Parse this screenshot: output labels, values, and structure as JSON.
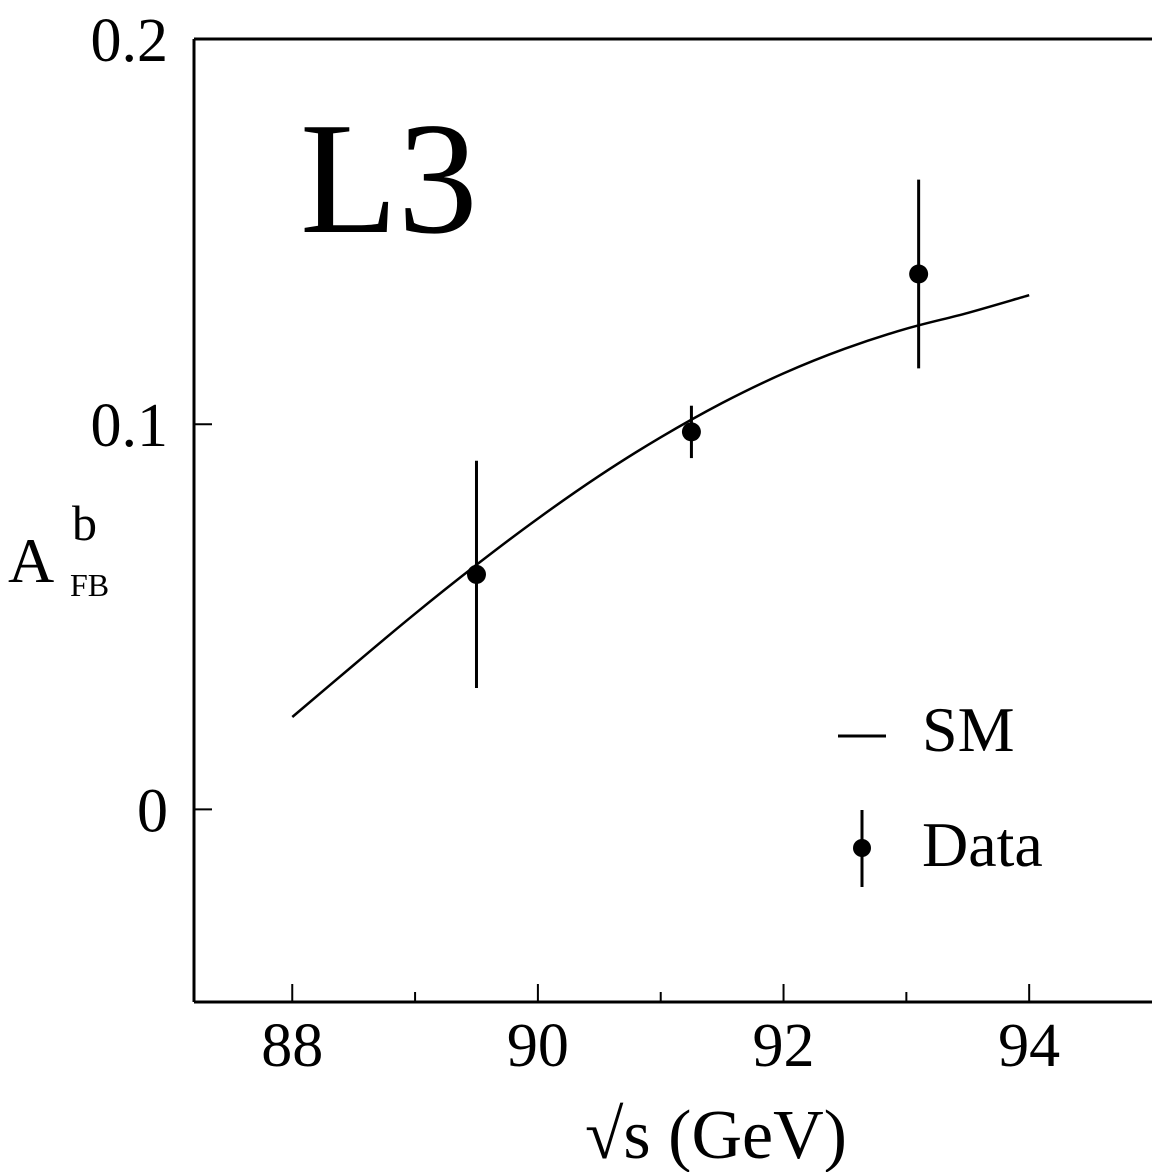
{
  "chart_data": {
    "type": "scatter",
    "panel_label": "L3",
    "xlabel": "√s (GeV)",
    "ylabel": {
      "main": "A",
      "sup": "b",
      "sub": "FB"
    },
    "xlim": [
      87.2,
      95
    ],
    "ylim": [
      -0.05,
      0.2
    ],
    "x_ticks": [
      88,
      89,
      90,
      91,
      92,
      93,
      94
    ],
    "x_tick_labels": [
      "88",
      "90",
      "92",
      "94"
    ],
    "x_tick_label_values": [
      88,
      90,
      92,
      94
    ],
    "y_ticks": [
      0,
      0.1,
      0.2
    ],
    "y_tick_labels": [
      "0",
      "0.1",
      "0.2"
    ],
    "grid": false,
    "legend_position": "bottom-right",
    "series": [
      {
        "name": "SM",
        "kind": "line",
        "x": [
          88.0,
          88.5,
          89.0,
          89.5,
          90.0,
          90.5,
          91.0,
          91.5,
          92.0,
          92.5,
          93.0,
          93.5,
          94.0
        ],
        "y": [
          0.024,
          0.0375,
          0.0508,
          0.0635,
          0.0755,
          0.0866,
          0.0966,
          0.1055,
          0.1132,
          0.1196,
          0.1248,
          0.1289,
          0.1335
        ]
      },
      {
        "name": "Data",
        "kind": "points-with-errors",
        "x": [
          89.5,
          91.25,
          93.1
        ],
        "y": [
          0.061,
          0.098,
          0.139
        ],
        "yerr": [
          0.0295,
          0.0068,
          0.0245
        ]
      }
    ],
    "colors": {
      "line": "#000000",
      "points": "#000000",
      "axes": "#000000"
    }
  }
}
